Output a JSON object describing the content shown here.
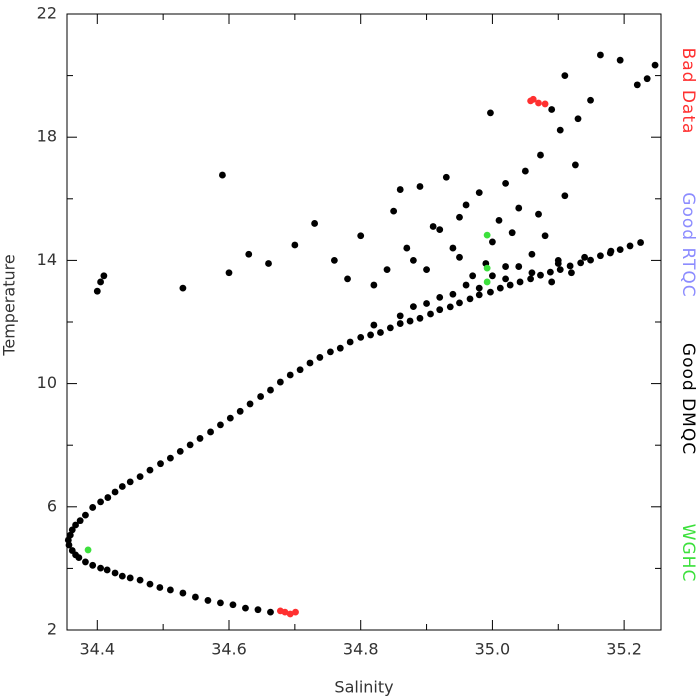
{
  "chart_data": {
    "type": "scatter",
    "x_label": "Salinity",
    "y_label": "Temperature",
    "xlim": [
      34.354,
      35.256
    ],
    "ylim": [
      2,
      22
    ],
    "xticks": [
      34.4,
      34.6,
      34.8,
      {
        "value": 35,
        "label": "35.0"
      },
      35.2
    ],
    "yticks": [
      2,
      6,
      10,
      14,
      18,
      22
    ],
    "legend": "right",
    "series": [
      {
        "name": "Bad Data",
        "color": "#ff3030",
        "x": [
          34.678,
          34.685,
          34.693,
          34.701,
          35.058,
          35.062,
          35.07,
          35.08
        ],
        "y": [
          2.62,
          2.58,
          2.52,
          2.58,
          19.18,
          19.23,
          19.11,
          19.08
        ]
      },
      {
        "name": "Good RTQC",
        "color": "#8c8cff",
        "x": [],
        "y": []
      },
      {
        "name": "Good DMQC",
        "color": "#000000",
        "x": [
          34.663,
          34.625,
          34.587,
          34.549,
          34.511,
          34.48,
          34.45,
          34.427,
          34.405,
          34.382,
          34.367,
          34.357,
          34.359,
          34.367,
          34.382,
          34.405,
          34.427,
          34.45,
          34.48,
          34.511,
          34.541,
          34.572,
          34.602,
          34.632,
          34.663,
          34.693,
          34.723,
          34.754,
          34.784,
          34.815,
          34.845,
          34.875,
          34.906,
          34.936,
          34.966,
          34.997,
          35.027,
          35.058,
          35.088,
          35.118,
          35.149,
          35.179,
          35.209,
          34.644,
          34.606,
          34.568,
          34.53,
          34.495,
          34.465,
          34.438,
          34.415,
          34.393,
          34.372,
          34.362,
          34.356,
          34.362,
          34.374,
          34.393,
          34.416,
          34.438,
          34.465,
          34.496,
          34.526,
          34.556,
          34.587,
          34.617,
          34.648,
          34.678,
          34.708,
          34.738,
          34.769,
          34.8,
          34.83,
          34.86,
          34.89,
          34.92,
          34.95,
          34.98,
          35.012,
          35.042,
          35.073,
          35.103,
          35.134,
          35.164,
          35.194,
          35.225,
          34.82,
          34.86,
          34.9,
          34.94,
          34.98,
          35.02,
          35.06,
          35.1,
          35.14,
          35.18,
          34.88,
          34.92,
          34.96,
          35.0,
          35.04,
          34.6,
          34.63,
          34.66,
          34.7,
          34.73,
          34.76,
          34.78,
          34.8,
          34.82,
          34.85,
          34.87,
          34.89,
          34.9,
          34.92,
          34.93,
          34.95,
          34.96,
          34.97,
          34.98,
          35.0,
          35.01,
          35.02,
          35.03,
          35.05,
          35.06,
          35.07,
          35.08,
          35.1,
          35.11,
          35.12,
          34.94,
          34.91,
          34.99,
          35.04,
          34.86,
          34.84,
          35.09,
          34.95,
          34.88,
          35.02,
          34.4,
          34.405,
          34.41,
          34.53,
          34.59,
          34.997,
          35.073,
          35.103,
          35.126,
          35.11,
          35.149,
          35.164,
          35.194,
          35.247,
          35.22,
          35.235,
          35.13,
          35.09
        ],
        "y": [
          2.58,
          2.71,
          2.88,
          3.07,
          3.3,
          3.49,
          3.69,
          3.85,
          4.01,
          4.21,
          4.44,
          4.76,
          5.08,
          5.41,
          5.73,
          6.16,
          6.48,
          6.81,
          7.19,
          7.58,
          8.01,
          8.43,
          8.88,
          9.34,
          9.79,
          10.28,
          10.67,
          11.03,
          11.35,
          11.58,
          11.81,
          12.03,
          12.26,
          12.49,
          12.75,
          12.97,
          13.2,
          13.4,
          13.62,
          13.82,
          14.01,
          14.24,
          14.47,
          2.66,
          2.82,
          2.96,
          3.2,
          3.38,
          3.62,
          3.75,
          3.95,
          4.1,
          4.35,
          4.58,
          4.92,
          5.25,
          5.55,
          5.98,
          6.3,
          6.66,
          6.98,
          7.4,
          7.8,
          8.22,
          8.66,
          9.1,
          9.58,
          10.05,
          10.45,
          10.85,
          11.15,
          11.5,
          11.66,
          11.95,
          12.12,
          12.4,
          12.62,
          12.88,
          13.1,
          13.3,
          13.52,
          13.7,
          13.92,
          14.15,
          14.35,
          14.58,
          11.9,
          12.2,
          12.6,
          12.9,
          13.1,
          13.4,
          13.6,
          13.9,
          14.1,
          14.3,
          12.5,
          12.8,
          13.2,
          13.5,
          13.8,
          13.6,
          14.2,
          13.9,
          14.5,
          15.2,
          14.0,
          13.4,
          14.8,
          13.2,
          15.6,
          14.4,
          16.4,
          13.7,
          15.0,
          16.7,
          14.1,
          15.8,
          13.5,
          16.2,
          14.6,
          15.3,
          13.8,
          14.9,
          16.9,
          14.2,
          15.5,
          14.8,
          14.0,
          16.1,
          13.6,
          14.4,
          15.1,
          13.9,
          15.7,
          16.3,
          13.7,
          13.3,
          15.4,
          14.0,
          16.5,
          13.0,
          13.3,
          13.5,
          13.1,
          16.77,
          18.79,
          17.42,
          18.23,
          17.1,
          20.0,
          19.2,
          20.67,
          20.5,
          20.34,
          19.7,
          19.9,
          18.6,
          18.9
        ]
      },
      {
        "name": "WGHC",
        "color": "#3ce03c",
        "x": [
          34.992,
          34.992,
          34.992,
          34.386
        ],
        "y": [
          14.82,
          13.75,
          13.3,
          4.6
        ]
      }
    ]
  }
}
